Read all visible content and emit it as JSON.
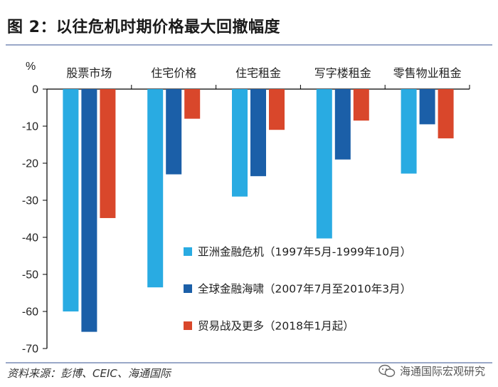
{
  "title": "图 2：以往危机时期价格最大回撤幅度",
  "source": "资料来源：彭博、CEIC、海通国际",
  "watermark": "海通国际宏观研究",
  "chart_data": {
    "type": "bar",
    "title": "",
    "ylabel": "%",
    "ylim": [
      -70,
      0
    ],
    "yticks": [
      0,
      -10,
      -20,
      -30,
      -40,
      -50,
      -60,
      -70
    ],
    "grid": false,
    "legend_position": "bottom-right inside",
    "categories": [
      "股票市场",
      "住宅价格",
      "住宅租金",
      "写字楼租金",
      "零售物业租金"
    ],
    "series": [
      {
        "name": "亚洲金融危机（1997年5月-1999年10月）",
        "color": "#29abe2",
        "values": [
          -60,
          -53.5,
          -29,
          -40.3,
          -22.8
        ]
      },
      {
        "name": "全球金融海啸（2007年7月至2010年3月）",
        "color": "#1b5fa8",
        "values": [
          -65.5,
          -23,
          -23.5,
          -19,
          -9.5
        ]
      },
      {
        "name": "贸易战及更多（2018年1月起）",
        "color": "#d9472b",
        "values": [
          -34.8,
          -8,
          -11,
          -8.5,
          -13.3
        ]
      }
    ]
  }
}
